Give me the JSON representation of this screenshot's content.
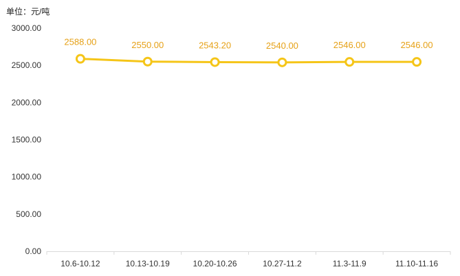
{
  "unit_label": "单位：元/吨",
  "colors": {
    "line": "#f5c518",
    "label": "#e6a117",
    "axis": "#d9d9d9",
    "marker_fill": "#ffffff"
  },
  "chart_data": {
    "type": "line",
    "categories": [
      "10.6-10.12",
      "10.13-10.19",
      "10.20-10.26",
      "10.27-11.2",
      "11.3-11.9",
      "11.10-11.16"
    ],
    "series": [
      {
        "values": [
          2588.0,
          2550.0,
          2543.2,
          2540.0,
          2546.0,
          2546.0
        ],
        "labels": [
          "2588.00",
          "2550.00",
          "2543.20",
          "2540.00",
          "2546.00",
          "2546.00"
        ]
      }
    ],
    "ylim": [
      0,
      3000
    ],
    "yticks": [
      0,
      500,
      1000,
      1500,
      2000,
      2500,
      3000
    ],
    "ytick_labels": [
      "0.00",
      "500.00",
      "1000.00",
      "1500.00",
      "2000.00",
      "2500.00",
      "3000.00"
    ],
    "grid": false,
    "title": "",
    "xlabel": "",
    "ylabel": ""
  }
}
